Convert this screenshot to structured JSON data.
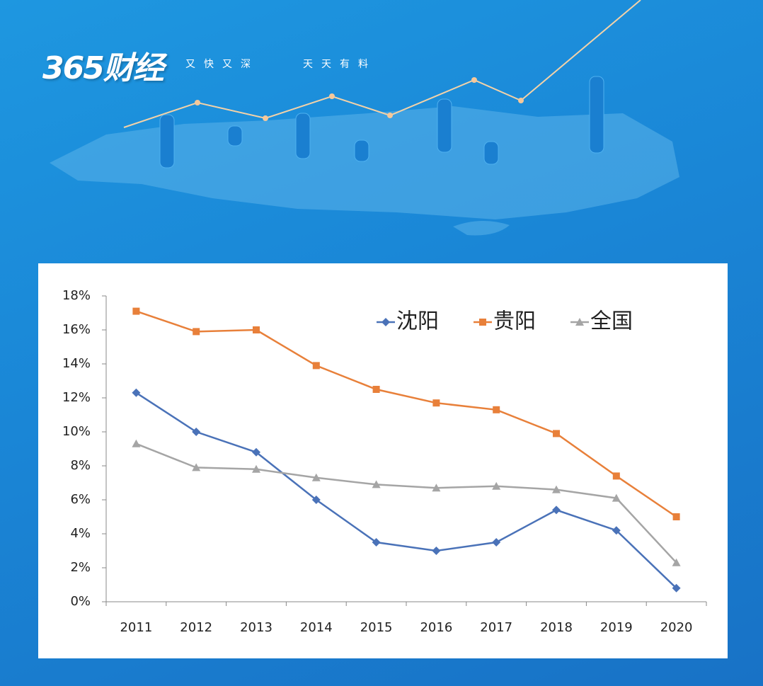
{
  "header": {
    "logo": "365财经",
    "slogan": [
      "又快又深",
      "天天有料"
    ]
  },
  "chart_data": {
    "type": "line",
    "categories": [
      "2011",
      "2012",
      "2013",
      "2014",
      "2015",
      "2016",
      "2017",
      "2018",
      "2019",
      "2020"
    ],
    "series": [
      {
        "name": "沈阳",
        "color": "#4a72b8",
        "marker": "diamond",
        "values": [
          12.3,
          10.0,
          8.8,
          6.0,
          3.5,
          3.0,
          3.5,
          5.4,
          4.2,
          0.8
        ]
      },
      {
        "name": "贵阳",
        "color": "#e8803a",
        "marker": "square",
        "values": [
          17.1,
          15.9,
          16.0,
          13.9,
          12.5,
          11.7,
          11.3,
          9.9,
          7.4,
          5.0
        ]
      },
      {
        "name": "全国",
        "color": "#a5a5a5",
        "marker": "triangle",
        "values": [
          9.3,
          7.9,
          7.8,
          7.3,
          6.9,
          6.7,
          6.8,
          6.6,
          6.1,
          2.3
        ]
      }
    ],
    "ylim": [
      0,
      18
    ],
    "yticks": [
      {
        "value": 0,
        "label": "0%"
      },
      {
        "value": 2,
        "label": "2%"
      },
      {
        "value": 4,
        "label": "4%"
      },
      {
        "value": 6,
        "label": "6%"
      },
      {
        "value": 8,
        "label": "8%"
      },
      {
        "value": 10,
        "label": "10%"
      },
      {
        "value": 12,
        "label": "12%"
      },
      {
        "value": 14,
        "label": "14%"
      },
      {
        "value": 16,
        "label": "16%"
      },
      {
        "value": 18,
        "label": "18%"
      }
    ],
    "grid": false,
    "legend": "top-right"
  }
}
